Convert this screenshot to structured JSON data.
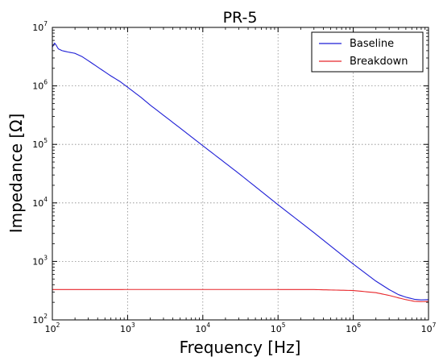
{
  "chart_data": {
    "type": "line",
    "title": "PR-5",
    "xlabel": "Frequency [Hz]",
    "ylabel": "Impedance [Ω]",
    "xscale": "log",
    "yscale": "log",
    "xlim": [
      100,
      10000000
    ],
    "ylim": [
      100,
      10000000
    ],
    "xticks": [
      {
        "base": "10",
        "exp": "2",
        "value": 100
      },
      {
        "base": "10",
        "exp": "3",
        "value": 1000
      },
      {
        "base": "10",
        "exp": "4",
        "value": 10000
      },
      {
        "base": "10",
        "exp": "5",
        "value": 100000
      },
      {
        "base": "10",
        "exp": "6",
        "value": 1000000
      },
      {
        "base": "10",
        "exp": "7",
        "value": 10000000
      }
    ],
    "yticks": [
      {
        "base": "10",
        "exp": "2",
        "value": 100
      },
      {
        "base": "10",
        "exp": "3",
        "value": 1000
      },
      {
        "base": "10",
        "exp": "4",
        "value": 10000
      },
      {
        "base": "10",
        "exp": "5",
        "value": 100000
      },
      {
        "base": "10",
        "exp": "6",
        "value": 1000000
      },
      {
        "base": "10",
        "exp": "7",
        "value": 10000000
      }
    ],
    "grid": true,
    "legend_position": "top-right",
    "series": [
      {
        "name": "Baseline",
        "color": "#1f1fd6",
        "x": [
          100,
          107,
          112,
          120,
          135,
          160,
          200,
          250,
          300,
          400,
          600,
          800,
          1000,
          1500,
          2000,
          3000,
          5000,
          10000,
          30000,
          100000,
          300000,
          1000000,
          2000000,
          3000000,
          4000000,
          5000000,
          6500000,
          8000000,
          10000000
        ],
        "y": [
          4600000,
          5400000,
          5000000,
          4300000,
          4000000,
          3800000,
          3600000,
          3150000,
          2700000,
          2100000,
          1480000,
          1180000,
          950000,
          640000,
          470000,
          315000,
          190000,
          95000,
          32000,
          9300,
          3100,
          900,
          460,
          330,
          270,
          245,
          225,
          220,
          222
        ]
      },
      {
        "name": "Breakdown",
        "color": "#e8262a",
        "x": [
          100,
          1000,
          10000,
          100000,
          300000,
          1000000,
          2000000,
          3000000,
          4000000,
          5000000,
          6500000,
          8000000,
          10000000
        ],
        "y": [
          330,
          331,
          331,
          331,
          330,
          318,
          292,
          262,
          238,
          222,
          208,
          205,
          207
        ]
      }
    ]
  }
}
